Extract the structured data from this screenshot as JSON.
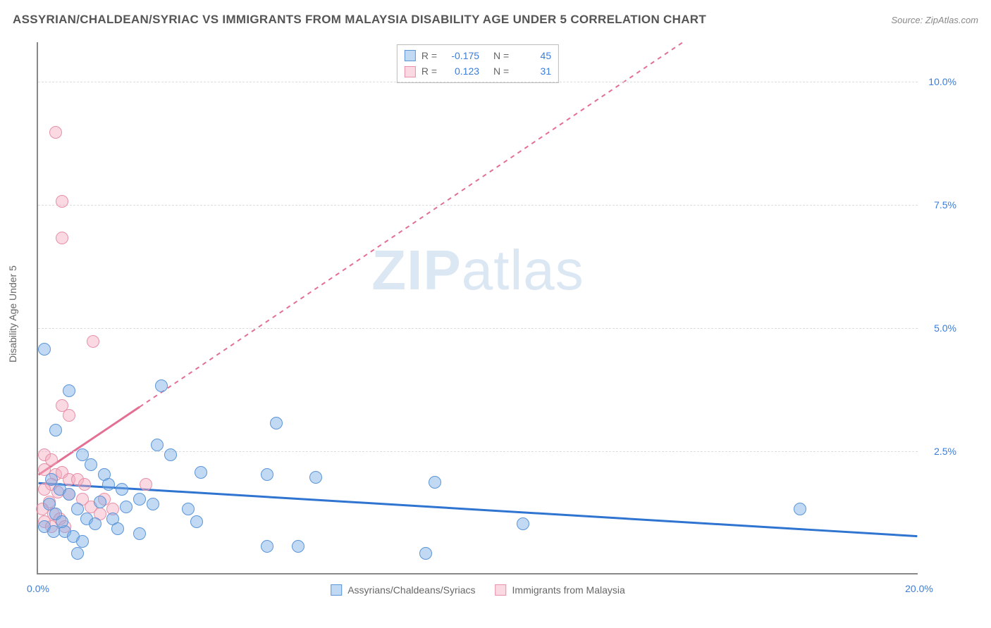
{
  "header": {
    "title": "ASSYRIAN/CHALDEAN/SYRIAC VS IMMIGRANTS FROM MALAYSIA DISABILITY AGE UNDER 5 CORRELATION CHART",
    "source": "Source: ZipAtlas.com"
  },
  "watermark": {
    "bold": "ZIP",
    "rest": "atlas"
  },
  "chart": {
    "type": "scatter",
    "y_label": "Disability Age Under 5",
    "xlim": [
      0,
      20
    ],
    "ylim": [
      0,
      10.8
    ],
    "x_ticks": [
      0,
      20
    ],
    "y_ticks": [
      2.5,
      5.0,
      7.5,
      10.0
    ],
    "x_tick_labels": [
      "0.0%",
      "20.0%"
    ],
    "y_tick_labels": [
      "2.5%",
      "5.0%",
      "7.5%",
      "10.0%"
    ],
    "background_color": "#ffffff",
    "grid_color": "#dddddd",
    "axis_color": "#888888",
    "tick_label_color": "#3b7dd8",
    "point_radius": 9,
    "series": [
      {
        "name": "Assyrians/Chaldeans/Syriacs",
        "color_fill": "rgba(120,170,230,0.45)",
        "color_stroke": "#5a95d8",
        "trend": {
          "x1": 0,
          "y1": 1.83,
          "x2": 20,
          "y2": 0.75,
          "color": "#2e74d0",
          "width": 3,
          "dash": "none"
        },
        "R": "-0.175",
        "N": "45",
        "points": [
          [
            0.15,
            4.55
          ],
          [
            0.7,
            3.7
          ],
          [
            0.4,
            2.9
          ],
          [
            2.8,
            3.8
          ],
          [
            5.4,
            3.05
          ],
          [
            5.2,
            2.0
          ],
          [
            2.7,
            2.6
          ],
          [
            3.0,
            2.4
          ],
          [
            3.7,
            2.05
          ],
          [
            1.0,
            2.4
          ],
          [
            1.2,
            2.2
          ],
          [
            1.5,
            2.0
          ],
          [
            1.6,
            1.8
          ],
          [
            1.9,
            1.7
          ],
          [
            2.3,
            1.5
          ],
          [
            2.6,
            1.4
          ],
          [
            3.4,
            1.3
          ],
          [
            0.3,
            1.9
          ],
          [
            0.5,
            1.7
          ],
          [
            0.7,
            1.6
          ],
          [
            0.25,
            1.4
          ],
          [
            0.4,
            1.2
          ],
          [
            0.9,
            1.3
          ],
          [
            1.1,
            1.1
          ],
          [
            1.3,
            1.0
          ],
          [
            1.7,
            1.1
          ],
          [
            2.0,
            1.35
          ],
          [
            2.3,
            0.8
          ],
          [
            0.15,
            0.95
          ],
          [
            0.35,
            0.85
          ],
          [
            0.6,
            0.85
          ],
          [
            0.8,
            0.75
          ],
          [
            1.0,
            0.65
          ],
          [
            9.0,
            1.85
          ],
          [
            11.0,
            1.0
          ],
          [
            5.2,
            0.55
          ],
          [
            5.9,
            0.55
          ],
          [
            6.3,
            1.95
          ],
          [
            8.8,
            0.4
          ],
          [
            0.9,
            0.4
          ],
          [
            3.6,
            1.05
          ],
          [
            17.3,
            1.3
          ],
          [
            1.4,
            1.45
          ],
          [
            1.8,
            0.9
          ],
          [
            0.55,
            1.05
          ]
        ]
      },
      {
        "name": "Immigrants from Malaysia",
        "color_fill": "rgba(245,170,190,0.45)",
        "color_stroke": "#e890a8",
        "trend": {
          "x1": 0,
          "y1": 2.0,
          "x2": 20,
          "y2": 14.0,
          "color": "#e36f93",
          "width": 2,
          "dash": "6,6"
        },
        "trend_solid_until_x": 2.3,
        "R": "0.123",
        "N": "31",
        "points": [
          [
            0.4,
            8.95
          ],
          [
            0.55,
            7.55
          ],
          [
            0.55,
            6.8
          ],
          [
            1.25,
            4.7
          ],
          [
            0.55,
            3.4
          ],
          [
            0.7,
            3.2
          ],
          [
            0.15,
            2.4
          ],
          [
            0.3,
            2.3
          ],
          [
            0.15,
            2.1
          ],
          [
            0.4,
            2.0
          ],
          [
            0.55,
            2.05
          ],
          [
            0.7,
            1.9
          ],
          [
            0.3,
            1.8
          ],
          [
            0.15,
            1.7
          ],
          [
            0.45,
            1.65
          ],
          [
            0.7,
            1.6
          ],
          [
            0.9,
            1.9
          ],
          [
            1.05,
            1.8
          ],
          [
            1.0,
            1.5
          ],
          [
            1.2,
            1.35
          ],
          [
            1.4,
            1.2
          ],
          [
            1.5,
            1.5
          ],
          [
            1.7,
            1.3
          ],
          [
            0.25,
            1.45
          ],
          [
            0.1,
            1.3
          ],
          [
            0.35,
            1.2
          ],
          [
            0.5,
            1.1
          ],
          [
            0.15,
            1.05
          ],
          [
            0.3,
            0.95
          ],
          [
            0.6,
            0.95
          ],
          [
            2.45,
            1.8
          ]
        ]
      }
    ]
  },
  "stats_box": {
    "rows": [
      {
        "swatch": "blue",
        "r_label": "R =",
        "r_val": "-0.175",
        "n_label": "N =",
        "n_val": "45"
      },
      {
        "swatch": "pink",
        "r_label": "R =",
        "r_val": "0.123",
        "n_label": "N =",
        "n_val": "31"
      }
    ]
  },
  "legend": {
    "items": [
      {
        "swatch": "blue",
        "label": "Assyrians/Chaldeans/Syriacs"
      },
      {
        "swatch": "pink",
        "label": "Immigrants from Malaysia"
      }
    ]
  }
}
